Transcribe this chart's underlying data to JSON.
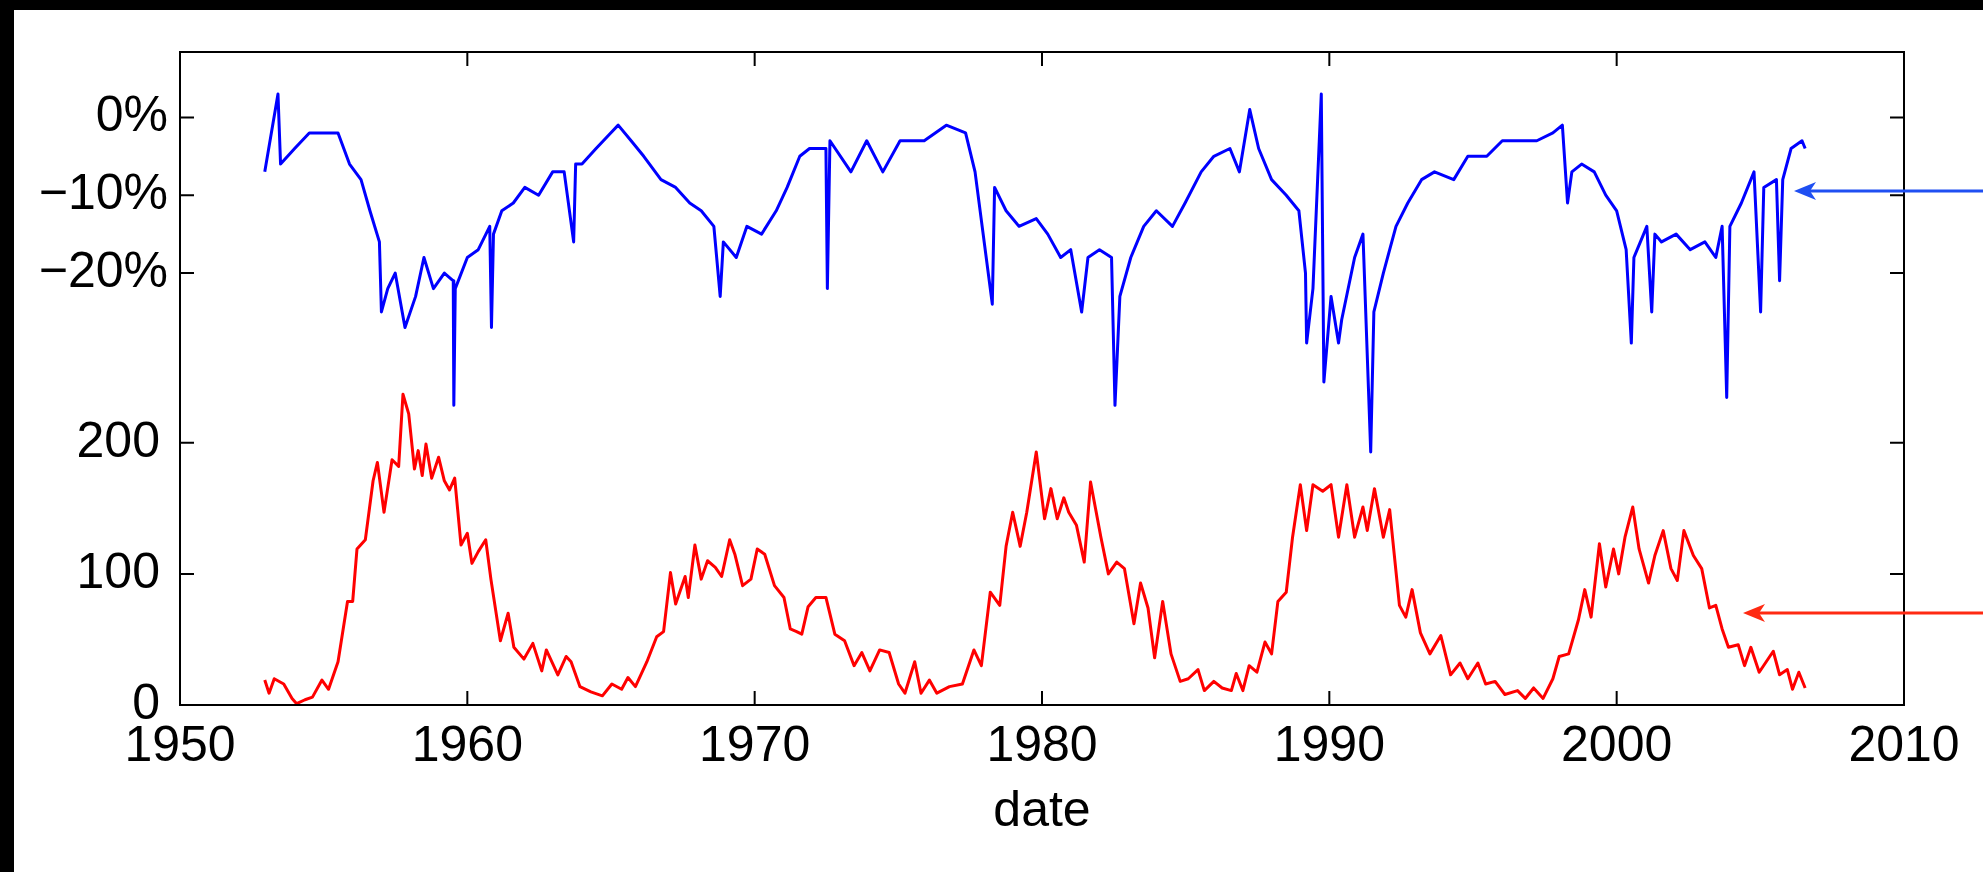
{
  "chart_data": {
    "type": "line",
    "xlabel": "date",
    "xlim": [
      1950,
      2010
    ],
    "xticks": [
      1950,
      1960,
      1970,
      1980,
      1990,
      2000,
      2010
    ],
    "ylim": [
      0,
      498
    ],
    "yticks": [
      0,
      100,
      200
    ],
    "y2lim": [
      -75.5,
      8.4
    ],
    "y2ticks": [
      {
        "value": 0,
        "label": "0%"
      },
      {
        "value": -10,
        "label": "−10%"
      },
      {
        "value": -20,
        "label": "−20%"
      }
    ],
    "series": [
      {
        "color": "#0000ff",
        "axis": "y2",
        "x": [
          1952.95,
          1953.41,
          1953.5,
          1953.99,
          1954.5,
          1954.99,
          1955.5,
          1955.9,
          1956.3,
          1956.61,
          1956.94,
          1957.01,
          1957.23,
          1957.49,
          1957.83,
          1958.2,
          1958.49,
          1958.82,
          1959.2,
          1959.51,
          1959.53,
          1959.58,
          1960,
          1960.38,
          1960.78,
          1960.84,
          1960.91,
          1961.2,
          1961.6,
          1962,
          1962.48,
          1962.97,
          1963.37,
          1963.7,
          1963.77,
          1963.99,
          1964.48,
          1964.99,
          1965.25,
          1965.7,
          1966.14,
          1966.74,
          1967.25,
          1967.74,
          1968.14,
          1968.58,
          1968.8,
          1968.91,
          1969.36,
          1969.73,
          1970.24,
          1970.75,
          1971.13,
          1971.57,
          1971.91,
          1972.48,
          1972.53,
          1972.62,
          1973.35,
          1973.9,
          1974.46,
          1975.06,
          1975.9,
          1976.67,
          1977.34,
          1977.67,
          1978.27,
          1978.35,
          1978.75,
          1979.2,
          1979.8,
          1980.2,
          1980.65,
          1981,
          1981.38,
          1981.6,
          1982,
          1982.42,
          1982.54,
          1982.71,
          1983.09,
          1983.54,
          1983.98,
          1984.54,
          1984.98,
          1985.54,
          1985.98,
          1986.54,
          1986.87,
          1987.23,
          1987.54,
          1987.99,
          1988.5,
          1988.94,
          1989.17,
          1989.21,
          1989.43,
          1989.72,
          1989.81,
          1990.06,
          1990.32,
          1990.43,
          1990.88,
          1991.17,
          1991.44,
          1991.55,
          1991.88,
          1992.32,
          1992.73,
          1993.21,
          1993.66,
          1994.33,
          1994.82,
          1995.48,
          1996.02,
          1996.55,
          1997.22,
          1997.78,
          1998.11,
          1998.29,
          1998.44,
          1998.78,
          1999.22,
          1999.62,
          2000,
          2000.33,
          2000.51,
          2000.6,
          2001.05,
          2001.22,
          2001.33,
          2001.56,
          2002.07,
          2002.56,
          2003.07,
          2003.45,
          2003.67,
          2003.83,
          2003.94,
          2004.34,
          2004.78,
          2005.01,
          2005.12,
          2005.56,
          2005.67,
          2005.78,
          2006.07,
          2006.45,
          2006.56
        ],
        "values": [
          -7,
          3,
          -6,
          -4,
          -2,
          -2,
          -2,
          -6,
          -8,
          -12,
          -16,
          -25,
          -22,
          -20,
          -27,
          -23,
          -18,
          -22,
          -20,
          -21,
          -37,
          -22,
          -18,
          -17,
          -14,
          -27,
          -15,
          -12,
          -11,
          -9,
          -10,
          -7,
          -7,
          -16,
          -6,
          -6,
          -4,
          -2,
          -1,
          -3,
          -5,
          -8,
          -9,
          -11,
          -12,
          -14,
          -23,
          -16,
          -18,
          -14,
          -15,
          -12,
          -9,
          -5,
          -4,
          -4,
          -22,
          -3,
          -7,
          -3,
          -7,
          -3,
          -3,
          -1,
          -2,
          -7,
          -24,
          -9,
          -12,
          -14,
          -13,
          -15,
          -18,
          -17,
          -25,
          -18,
          -17,
          -18,
          -37,
          -23,
          -18,
          -14,
          -12,
          -14,
          -11,
          -7,
          -5,
          -4,
          -7,
          1,
          -4,
          -8,
          -10,
          -12,
          -20,
          -29,
          -22,
          3,
          -34,
          -23,
          -29,
          -26,
          -18,
          -15,
          -43,
          -25,
          -20,
          -14,
          -11,
          -8,
          -7,
          -8,
          -5,
          -5,
          -3,
          -3,
          -3,
          -2,
          -1,
          -11,
          -7,
          -6,
          -7,
          -10,
          -12,
          -17,
          -29,
          -18,
          -14,
          -25,
          -15,
          -16,
          -15,
          -17,
          -16,
          -18,
          -14,
          -36,
          -14,
          -11,
          -7,
          -25,
          -9,
          -8,
          -21,
          -8,
          -4,
          -3,
          -4
        ]
      },
      {
        "color": "#ff0000",
        "x": [
          1952.95,
          1953.1,
          1953.28,
          1953.61,
          1953.9,
          1954.06,
          1954.35,
          1954.61,
          1954.94,
          1955.17,
          1955.5,
          1955.83,
          1956.01,
          1956.16,
          1956.45,
          1956.72,
          1956.87,
          1957.1,
          1957.38,
          1957.61,
          1957.76,
          1957.96,
          1958.16,
          1958.29,
          1958.43,
          1958.56,
          1958.76,
          1959,
          1959.2,
          1959.38,
          1959.56,
          1959.78,
          1960,
          1960.16,
          1960.38,
          1960.64,
          1960.82,
          1961.15,
          1961.42,
          1961.62,
          1961.97,
          1962.28,
          1962.59,
          1962.75,
          1963.15,
          1963.44,
          1963.61,
          1963.92,
          1964.3,
          1964.7,
          1965.03,
          1965.37,
          1965.59,
          1965.85,
          1966.25,
          1966.59,
          1966.83,
          1967.07,
          1967.25,
          1967.58,
          1967.69,
          1967.92,
          1968.14,
          1968.36,
          1968.63,
          1968.85,
          1969.13,
          1969.31,
          1969.58,
          1969.87,
          1970.09,
          1970.35,
          1970.69,
          1971.02,
          1971.24,
          1971.46,
          1971.64,
          1971.86,
          1972.13,
          1972.48,
          1972.79,
          1973.13,
          1973.46,
          1973.73,
          1974.01,
          1974.35,
          1974.68,
          1975.01,
          1975.23,
          1975.57,
          1975.79,
          1976.08,
          1976.34,
          1976.78,
          1977.23,
          1977.63,
          1977.89,
          1978.2,
          1978.53,
          1978.75,
          1978.98,
          1979.24,
          1979.47,
          1979.8,
          1980.09,
          1980.31,
          1980.53,
          1980.76,
          1980.93,
          1981.2,
          1981.47,
          1981.69,
          1982.05,
          1982.31,
          1982.6,
          1982.87,
          1983.2,
          1983.43,
          1983.69,
          1983.92,
          1984.2,
          1984.49,
          1984.81,
          1985.09,
          1985.43,
          1985.65,
          1985.98,
          1986.27,
          1986.59,
          1986.76,
          1986.99,
          1987.21,
          1987.48,
          1987.76,
          1987.99,
          1988.21,
          1988.5,
          1988.72,
          1988.99,
          1989.21,
          1989.43,
          1989.77,
          1990.06,
          1990.32,
          1990.61,
          1990.88,
          1991.17,
          1991.32,
          1991.57,
          1991.88,
          1992.1,
          1992.44,
          1992.66,
          1992.88,
          1993.17,
          1993.5,
          1993.88,
          1994.22,
          1994.55,
          1994.82,
          1995.17,
          1995.44,
          1995.77,
          1996.11,
          1996.55,
          1996.82,
          1997.11,
          1997.44,
          1997.78,
          1998,
          1998.33,
          1998.67,
          1998.89,
          1999.11,
          1999.4,
          1999.62,
          1999.89,
          2000.07,
          2000.29,
          2000.56,
          2000.78,
          2001.11,
          2001.33,
          2001.62,
          2001.89,
          2002.11,
          2002.34,
          2002.67,
          2002.96,
          2003.23,
          2003.45,
          2003.67,
          2003.89,
          2004.23,
          2004.45,
          2004.67,
          2004.96,
          2005.45,
          2005.67,
          2005.94,
          2006.12,
          2006.34,
          2006.56
        ],
        "values": [
          19,
          9,
          20,
          16,
          5,
          1,
          4,
          6,
          19,
          12,
          33,
          79,
          79,
          119,
          126,
          171,
          185,
          147,
          187,
          182,
          237,
          222,
          180,
          194,
          175,
          199,
          173,
          189,
          171,
          164,
          173,
          122,
          131,
          108,
          117,
          126,
          96,
          49,
          70,
          44,
          35,
          47,
          26,
          42,
          23,
          37,
          33,
          14,
          10,
          7,
          16,
          12,
          21,
          14,
          33,
          52,
          56,
          101,
          77,
          98,
          82,
          122,
          96,
          110,
          105,
          98,
          126,
          115,
          91,
          96,
          119,
          115,
          91,
          82,
          58,
          56,
          54,
          75,
          82,
          82,
          54,
          49,
          30,
          40,
          26,
          42,
          40,
          16,
          9,
          33,
          9,
          19,
          9,
          14,
          16,
          42,
          30,
          86,
          76,
          121,
          147,
          121,
          147,
          193,
          142,
          165,
          142,
          158,
          147,
          137,
          109,
          170,
          128,
          100,
          109,
          104,
          62,
          93,
          74,
          36,
          79,
          39,
          18,
          20,
          27,
          11,
          18,
          13,
          11,
          24,
          11,
          30,
          25,
          48,
          39,
          79,
          86,
          128,
          168,
          133,
          168,
          163,
          168,
          128,
          168,
          128,
          151,
          133,
          165,
          128,
          149,
          76,
          67,
          88,
          55,
          39,
          53,
          23,
          32,
          20,
          32,
          16,
          18,
          8,
          11,
          5,
          13,
          5,
          20,
          37,
          39,
          65,
          88,
          67,
          123,
          90,
          119,
          100,
          128,
          151,
          119,
          93,
          114,
          133,
          104,
          95,
          133,
          114,
          104,
          74,
          76,
          58,
          44,
          46,
          30,
          44,
          25,
          41,
          23,
          27,
          12,
          25,
          13
        ]
      }
    ]
  }
}
